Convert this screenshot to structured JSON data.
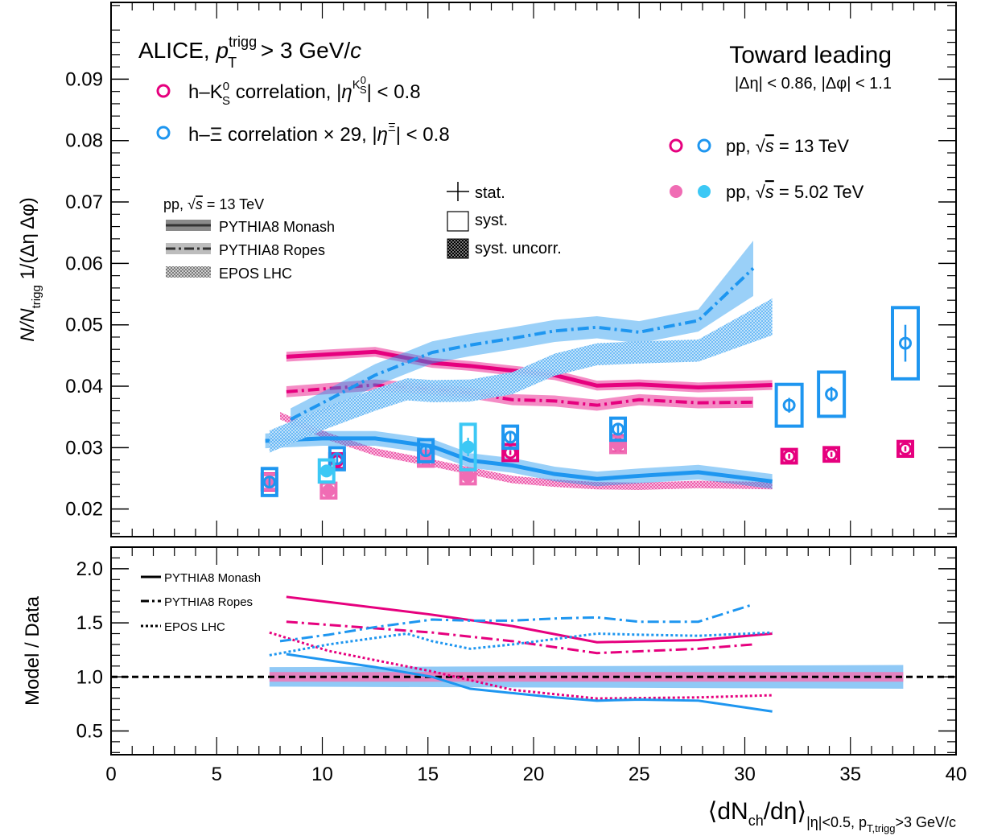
{
  "colors": {
    "k0s_13": "#e6007e",
    "k0s_502": "#f06cb4",
    "xi_13": "#1e96f0",
    "xi_502": "#3cc8f5",
    "k0s_band": "#f277b6",
    "xi_band": "#7cc0f5"
  },
  "header": {
    "collab": "ALICE, ",
    "trigg_sup": "trigg",
    "trigg_sub": "T",
    "cut_text": " > 3 GeV/",
    "region": "Toward leading",
    "window": "|Δη| < 0.86, |Δφ| < 1.1"
  },
  "legend_species": {
    "k0s_pre": "h–K",
    "k0s_sup": "0",
    "k0s_sub": "S",
    "k0s_mid": " correlation,  |",
    "k0s_eta_sup": "K",
    "k0s_eta_supsup": "0",
    "k0s_eta_supsub": "S",
    "k0s_post": "| < 0.8",
    "xi_pre": "h–Ξ correlation × 29, |",
    "xi_eta_sup": "Ξ",
    "xi_post": "| < 0.8"
  },
  "legend_energy": {
    "e13_pre": "pp, ",
    "e13_post": " = 13 TeV",
    "e502_post": " = 5.02 TeV"
  },
  "legend_models": {
    "head_pre": "pp, ",
    "head_post": " = 13 TeV",
    "monash": "PYTHIA8 Monash",
    "ropes": "PYTHIA8 Ropes",
    "epos": "EPOS LHC"
  },
  "legend_unc": {
    "stat": "stat.",
    "syst": "syst.",
    "syst_uncorr": "syst. uncorr."
  },
  "legend_ratio": {
    "monash": "PYTHIA8 Monash",
    "ropes": "PYTHIA8 Ropes",
    "epos": "EPOS LHC"
  },
  "axes": {
    "ylabel_top": "N/N",
    "ylabel_sub": "trigg",
    "ylabel_post": " 1/(Δη Δφ)",
    "ylabel_bottom": "Model / Data",
    "xlabel_main": "⟨dN",
    "xlabel_ch": "ch",
    "xlabel_post": "/dη⟩",
    "xlabel_sub": "|η|<0.5, p",
    "xlabel_sub2": "T,trigg",
    "xlabel_sub3": ">3 GeV/c"
  },
  "chart_data": [
    {
      "type": "scatter",
      "panel": "top",
      "xlim": [
        0,
        40
      ],
      "ylim": [
        0.0155,
        0.1025
      ],
      "yticks": [
        0.02,
        0.03,
        0.04,
        0.05,
        0.06,
        0.07,
        0.08,
        0.09
      ],
      "ytick_labels": [
        "0.02",
        "0.03",
        "0.04",
        "0.05",
        "0.06",
        "0.07",
        "0.08",
        "0.09"
      ],
      "series": [
        {
          "key": "k0s_13",
          "x": [
            7.5,
            10.7,
            14.9,
            18.9,
            24.0,
            32.1,
            34.1,
            37.6
          ],
          "y": [
            0.0244,
            0.0278,
            0.0282,
            0.0292,
            0.0306,
            0.0286,
            0.0289,
            0.0298
          ],
          "syst": [
            0.0013,
            0.0012,
            0.0012,
            0.0013,
            0.0013,
            0.0011,
            0.0011,
            0.0012
          ],
          "stat": [
            0.0004,
            0.0004,
            0.0004,
            0.0004,
            0.0004,
            0.0004,
            0.0004,
            0.0004
          ]
        },
        {
          "key": "k0s_502",
          "x": [
            7.5,
            10.3,
            14.9,
            16.9,
            24.0
          ],
          "y": [
            0.0244,
            0.023,
            0.0282,
            0.0253,
            0.0305
          ],
          "syst": [
            0.0012,
            0.0012,
            0.0012,
            0.0012,
            0.0013
          ],
          "stat": [
            0.0005,
            0.0005,
            0.0005,
            0.0005,
            0.0005
          ]
        },
        {
          "key": "xi_13",
          "x": [
            7.5,
            10.7,
            14.9,
            18.9,
            24.0,
            32.1,
            34.1,
            37.6
          ],
          "y": [
            0.0244,
            0.0282,
            0.0295,
            0.0317,
            0.033,
            0.0369,
            0.0387,
            0.047
          ],
          "syst": [
            0.0022,
            0.0018,
            0.0018,
            0.0018,
            0.0018,
            0.0034,
            0.0036,
            0.0058
          ],
          "stat": [
            0.0008,
            0.0008,
            0.0008,
            0.0008,
            0.001,
            0.0012,
            0.0012,
            0.003
          ]
        },
        {
          "key": "xi_502",
          "x": [
            10.2,
            16.9
          ],
          "y": [
            0.0262,
            0.0301
          ],
          "syst": [
            0.0018,
            0.0037
          ],
          "stat": [
            0.001,
            0.0015
          ]
        }
      ],
      "models": [
        {
          "key": "k0s_monash",
          "color": "k0s_13",
          "style": "solid",
          "x": [
            8.3,
            12.5,
            15.2,
            17.0,
            21.0,
            23.0,
            25.0,
            27.8,
            31.3
          ],
          "y": [
            0.0448,
            0.0456,
            0.0438,
            0.0433,
            0.0418,
            0.0401,
            0.0403,
            0.0398,
            0.0402
          ],
          "band": 0.0008
        },
        {
          "key": "k0s_ropes",
          "color": "k0s_13",
          "style": "dashdot",
          "x": [
            8.3,
            12.5,
            15.2,
            17.0,
            19.0,
            21.0,
            23.0,
            25.0,
            27.8,
            30.4
          ],
          "y": [
            0.0391,
            0.0402,
            0.0395,
            0.0389,
            0.0378,
            0.0376,
            0.0369,
            0.0378,
            0.0373,
            0.0374
          ],
          "band": 0.0009
        },
        {
          "key": "k0s_epos",
          "color": "k0s_band",
          "style": "dotted",
          "x": [
            8.0,
            10.3,
            12.5,
            15.2,
            17.0,
            19.0,
            21.0,
            23.0,
            25.0,
            27.8,
            31.3
          ],
          "y": [
            0.0352,
            0.0318,
            0.0293,
            0.0275,
            0.0262,
            0.0248,
            0.0242,
            0.0238,
            0.0237,
            0.024,
            0.0238
          ],
          "band": 0.0006
        },
        {
          "key": "xi_monash",
          "color": "xi_13",
          "style": "solid",
          "x": [
            7.3,
            10.0,
            12.5,
            15.2,
            17.0,
            19.0,
            21.0,
            23.0,
            25.0,
            27.8,
            31.3
          ],
          "y": [
            0.0311,
            0.0315,
            0.0315,
            0.0302,
            0.0279,
            0.0271,
            0.0257,
            0.0249,
            0.0254,
            0.026,
            0.0245
          ],
          "band": 0.0012
        },
        {
          "key": "xi_ropes",
          "color": "xi_13",
          "style": "dashdot",
          "x": [
            8.5,
            10.3,
            12.5,
            15.2,
            17.0,
            19.0,
            21.0,
            23.0,
            25.0,
            27.8,
            30.4
          ],
          "y": [
            0.0346,
            0.0378,
            0.0418,
            0.0455,
            0.0467,
            0.0478,
            0.049,
            0.0496,
            0.0488,
            0.0507,
            0.0592
          ],
          "band": 0.0018,
          "band_last": 0.0045
        },
        {
          "key": "xi_epos",
          "color": "xi_band",
          "style": "dotted",
          "x": [
            7.5,
            10.3,
            12.5,
            14.0,
            15.2,
            17.0,
            19.0,
            21.0,
            23.0,
            25.0,
            27.8,
            31.3
          ],
          "y": [
            0.031,
            0.035,
            0.0378,
            0.0395,
            0.0392,
            0.0393,
            0.0405,
            0.0435,
            0.0452,
            0.0455,
            0.0458,
            0.0513
          ],
          "band": 0.0018,
          "band_last": 0.003
        }
      ]
    },
    {
      "type": "line",
      "panel": "bottom",
      "xlim": [
        0,
        40
      ],
      "ylim": [
        0.28,
        2.2
      ],
      "yticks": [
        0.5,
        1.0,
        1.5,
        2.0
      ],
      "ytick_labels": [
        "0.5",
        "1.0",
        "1.5",
        "2.0"
      ],
      "xticks": [
        0,
        5,
        10,
        15,
        20,
        25,
        30,
        35,
        40
      ],
      "xtick_labels": [
        "0",
        "5",
        "10",
        "15",
        "20",
        "25",
        "30",
        "35",
        "40"
      ],
      "reference_line": 1.0,
      "bands": [
        {
          "color": "xi_band",
          "x": [
            7.5,
            37.5
          ],
          "half_width": [
            0.09,
            0.11
          ]
        },
        {
          "color": "k0s_band",
          "x": [
            7.5,
            37.5
          ],
          "half_width": [
            0.045,
            0.045
          ]
        }
      ],
      "series": [
        {
          "key": "k0s_monash",
          "color": "k0s_13",
          "style": "solid",
          "width": 3,
          "x": [
            8.3,
            15.0,
            19.0,
            23.0,
            27.8,
            31.3
          ],
          "y": [
            1.74,
            1.58,
            1.47,
            1.32,
            1.34,
            1.4
          ]
        },
        {
          "key": "k0s_ropes",
          "color": "k0s_13",
          "style": "dashdot",
          "width": 3,
          "x": [
            8.3,
            15.2,
            19.0,
            23.0,
            27.8,
            30.4
          ],
          "y": [
            1.51,
            1.41,
            1.33,
            1.22,
            1.26,
            1.3
          ]
        },
        {
          "key": "k0s_epos",
          "color": "k0s_13",
          "style": "dotted",
          "width": 3,
          "x": [
            7.5,
            10.3,
            15.2,
            19.0,
            23.0,
            27.8,
            31.3
          ],
          "y": [
            1.41,
            1.24,
            1.05,
            0.88,
            0.8,
            0.81,
            0.83
          ]
        },
        {
          "key": "xi_monash",
          "color": "xi_13",
          "style": "solid",
          "width": 3,
          "x": [
            8.3,
            12.5,
            15.2,
            17.0,
            19.0,
            21.0,
            23.0,
            25.0,
            27.8,
            31.3
          ],
          "y": [
            1.21,
            1.09,
            1.0,
            0.89,
            0.85,
            0.81,
            0.78,
            0.79,
            0.78,
            0.68
          ]
        },
        {
          "key": "xi_ropes",
          "color": "xi_13",
          "style": "dashdot",
          "width": 3,
          "x": [
            8.0,
            10.3,
            12.5,
            15.2,
            17.0,
            19.0,
            21.0,
            23.0,
            25.0,
            27.8,
            30.4
          ],
          "y": [
            1.33,
            1.39,
            1.46,
            1.53,
            1.52,
            1.52,
            1.54,
            1.55,
            1.51,
            1.51,
            1.67
          ]
        },
        {
          "key": "xi_epos",
          "color": "xi_13",
          "style": "dotted",
          "width": 3,
          "x": [
            7.5,
            10.3,
            12.5,
            14.0,
            15.2,
            17.0,
            19.0,
            21.0,
            23.0,
            25.0,
            27.8,
            31.3
          ],
          "y": [
            1.2,
            1.3,
            1.36,
            1.4,
            1.33,
            1.26,
            1.3,
            1.35,
            1.4,
            1.39,
            1.38,
            1.41
          ]
        }
      ]
    }
  ]
}
